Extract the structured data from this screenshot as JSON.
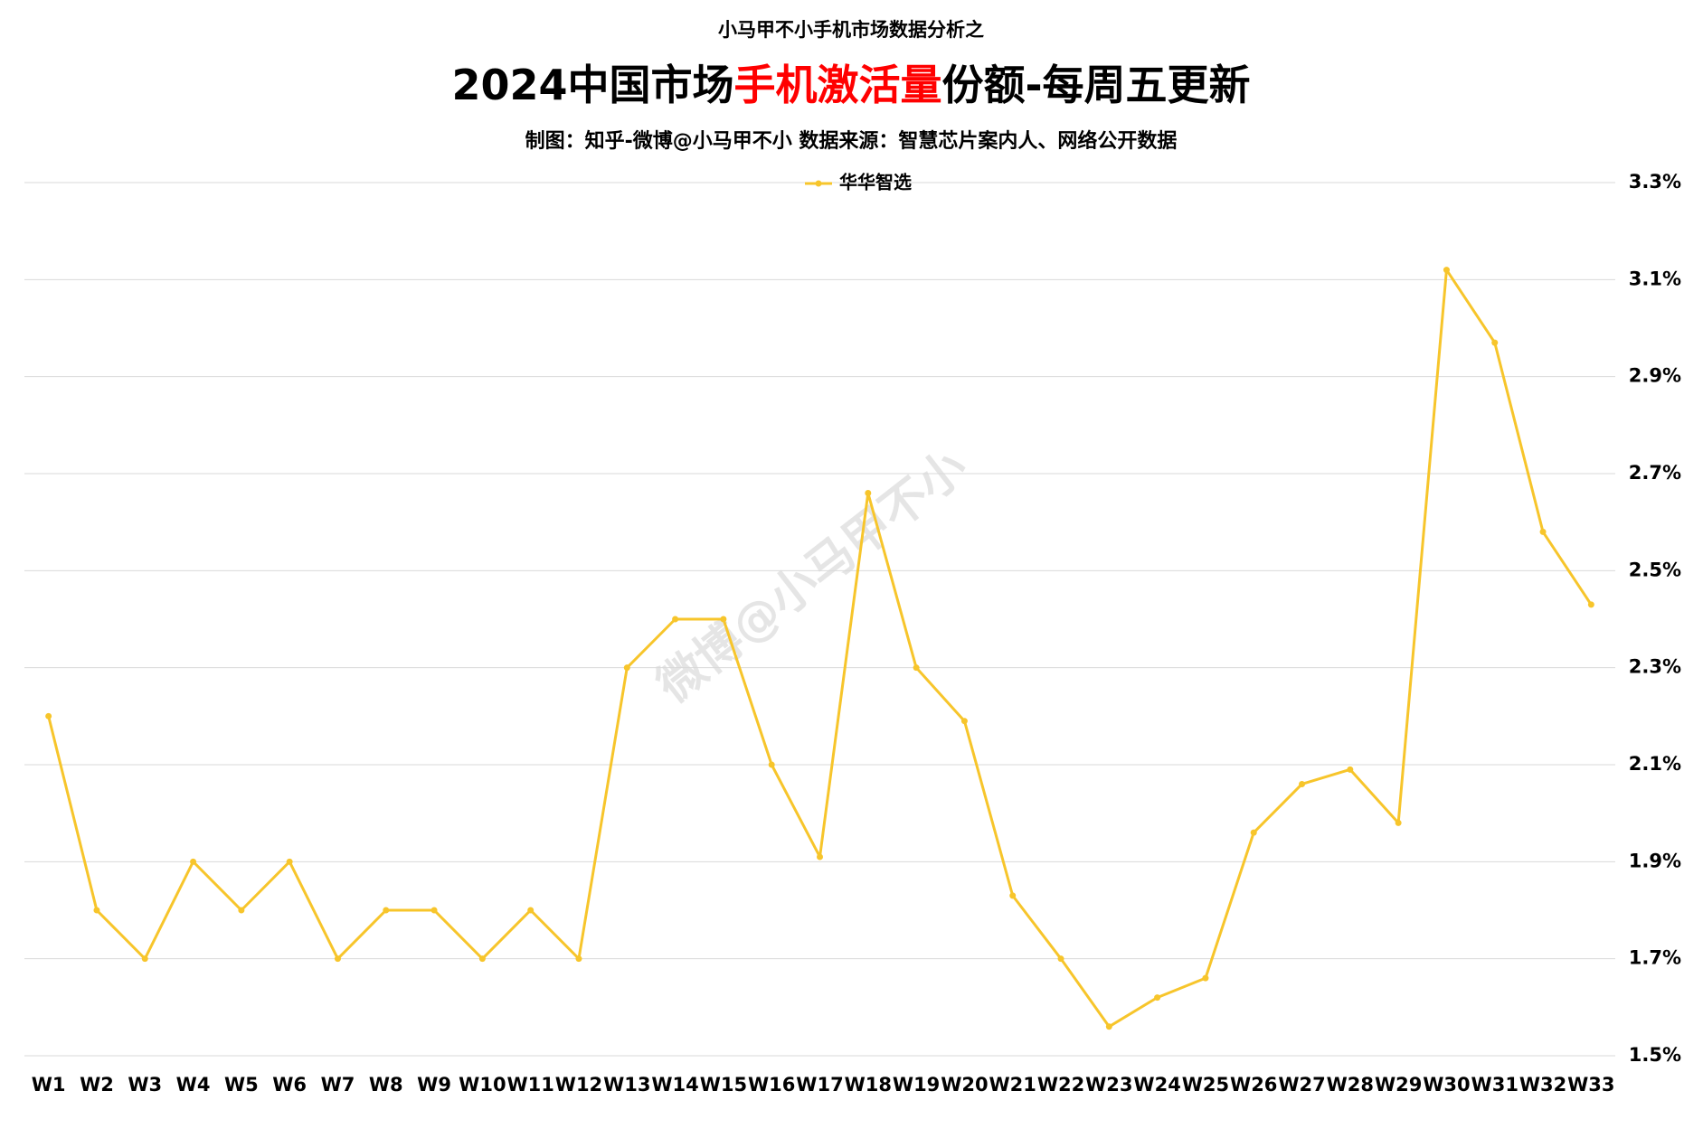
{
  "chart_data": {
    "type": "line",
    "pretitle": "小马甲不小手机市场数据分析之",
    "title_parts": [
      {
        "text": "2024中国市场",
        "color": "#000000"
      },
      {
        "text": "手机激活量",
        "color": "#ff0000"
      },
      {
        "text": "份额-每周五更新",
        "color": "#000000"
      }
    ],
    "subtitle": "制图：知乎-微博@小马甲不小  数据来源：智慧芯片案内人、网络公开数据",
    "watermark": "微博@小马甲不小",
    "categories": [
      "W1",
      "W2",
      "W3",
      "W4",
      "W5",
      "W6",
      "W7",
      "W8",
      "W9",
      "W10",
      "W11",
      "W12",
      "W13",
      "W14",
      "W15",
      "W16",
      "W17",
      "W18",
      "W19",
      "W20",
      "W21",
      "W22",
      "W23",
      "W24",
      "W25",
      "W26",
      "W27",
      "W28",
      "W29",
      "W30",
      "W31",
      "W32",
      "W33"
    ],
    "series": [
      {
        "name": "华华智选",
        "color": "#f7c52b",
        "values": [
          2.2,
          1.8,
          1.7,
          1.9,
          1.8,
          1.9,
          1.7,
          1.8,
          1.8,
          1.7,
          1.8,
          1.7,
          2.3,
          2.4,
          2.4,
          2.1,
          1.91,
          2.66,
          2.3,
          2.19,
          1.83,
          1.7,
          1.56,
          1.62,
          1.66,
          1.96,
          2.06,
          2.09,
          1.98,
          3.12,
          2.97,
          2.58,
          2.43
        ]
      }
    ],
    "ylim": [
      1.5,
      3.3
    ],
    "yticks": [
      {
        "value": 1.5,
        "label": "1.5%"
      },
      {
        "value": 1.7,
        "label": "1.7%"
      },
      {
        "value": 1.9,
        "label": "1.9%"
      },
      {
        "value": 2.1,
        "label": "2.1%"
      },
      {
        "value": 2.3,
        "label": "2.3%"
      },
      {
        "value": 2.5,
        "label": "2.5%"
      },
      {
        "value": 2.7,
        "label": "2.7%"
      },
      {
        "value": 2.9,
        "label": "2.9%"
      },
      {
        "value": 3.1,
        "label": "3.1%"
      },
      {
        "value": 3.3,
        "label": "3.3%"
      }
    ],
    "grid": true,
    "legend": "top"
  }
}
